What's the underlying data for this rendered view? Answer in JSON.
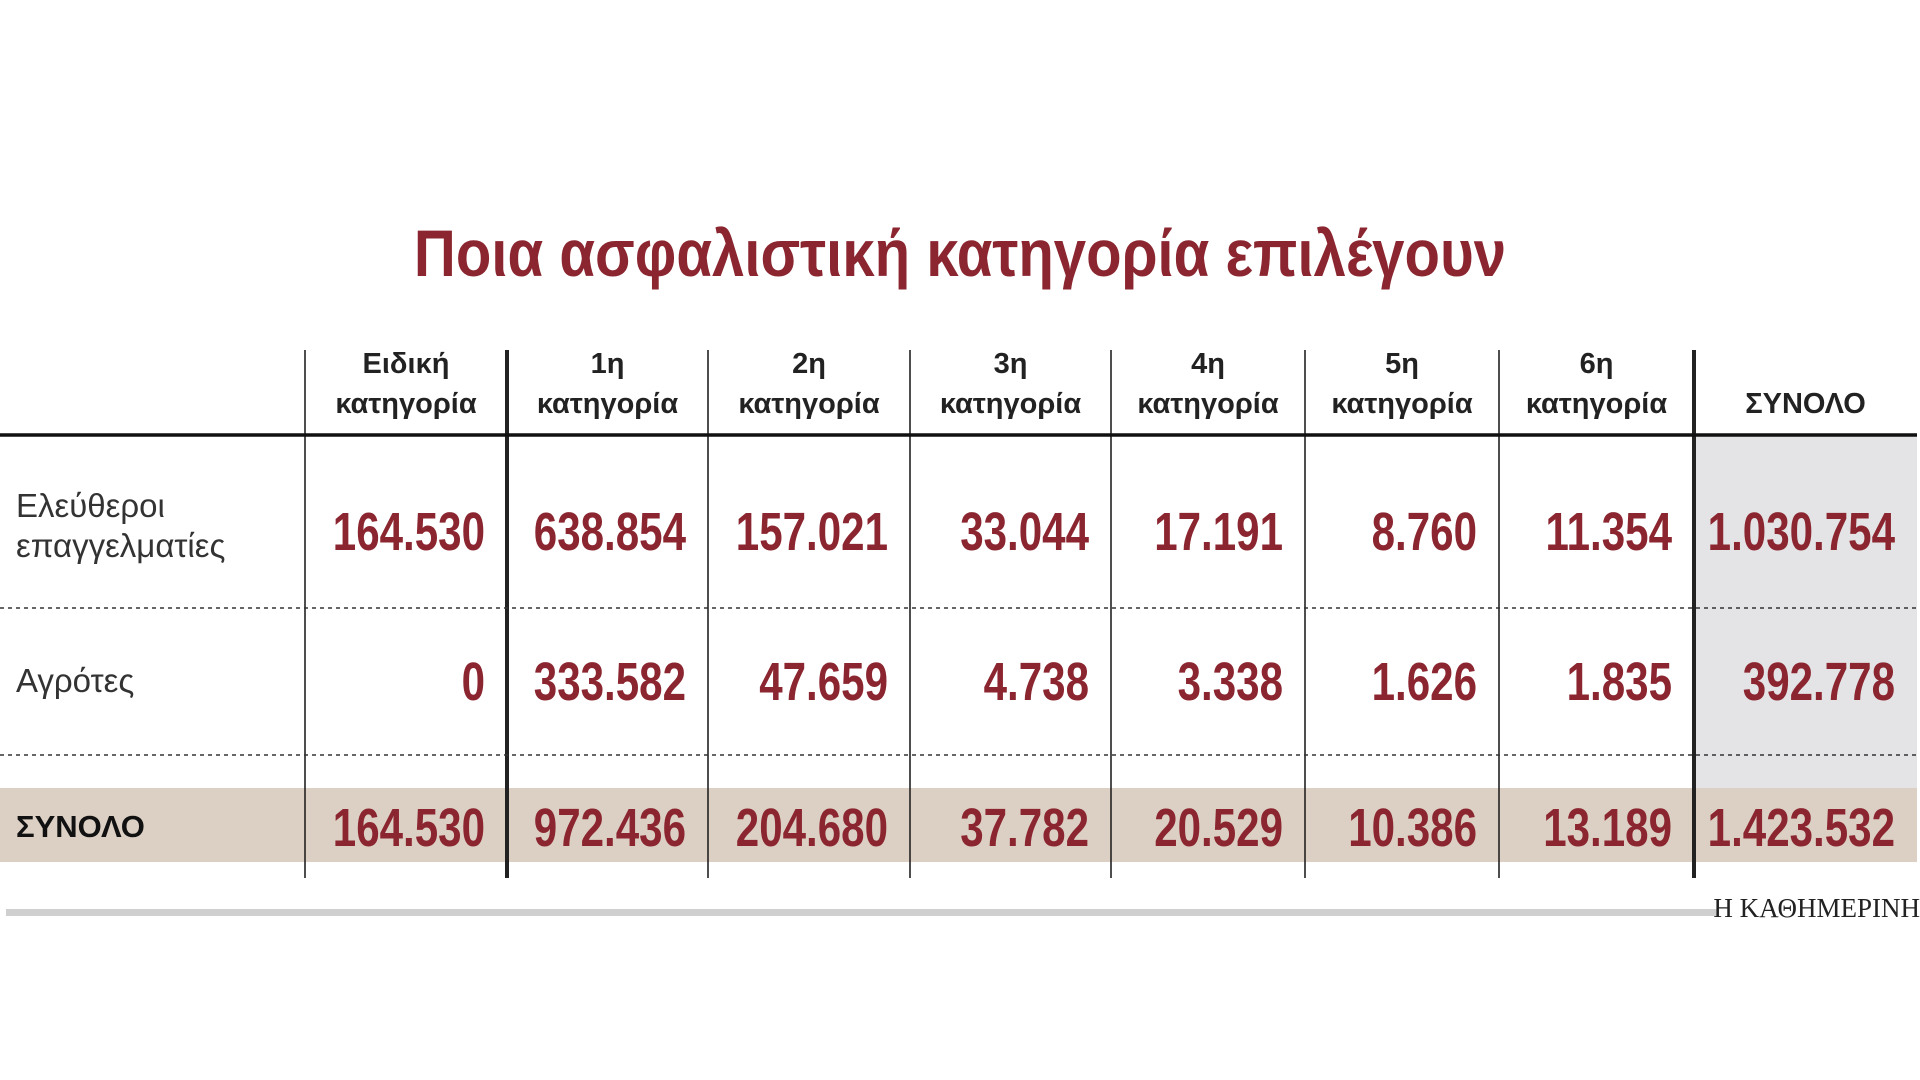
{
  "chart_data": {
    "type": "table",
    "title": "Ποια ασφαλιστική κατηγορία επιλέγουν",
    "columns": [
      [
        "Ειδική",
        "κατηγορία"
      ],
      [
        "1η",
        "κατηγορία"
      ],
      [
        "2η",
        "κατηγορία"
      ],
      [
        "3η",
        "κατηγορία"
      ],
      [
        "4η",
        "κατηγορία"
      ],
      [
        "5η",
        "κατηγορία"
      ],
      [
        "6η",
        "κατηγορία"
      ],
      [
        "",
        "ΣΥΝΟΛΟ"
      ]
    ],
    "rows": [
      {
        "label": [
          "Ελεύθεροι",
          "επαγγελματίες"
        ],
        "values": [
          "164.530",
          "638.854",
          "157.021",
          "33.044",
          "17.191",
          "8.760",
          "11.354",
          "1.030.754"
        ]
      },
      {
        "label": [
          "Αγρότες"
        ],
        "values": [
          "0",
          "333.582",
          "47.659",
          "4.738",
          "3.338",
          "1.626",
          "1.835",
          "392.778"
        ]
      },
      {
        "label": [
          "ΣΥΝΟΛΟ"
        ],
        "values": [
          "164.530",
          "972.436",
          "204.680",
          "37.782",
          "20.529",
          "10.386",
          "13.189",
          "1.423.532"
        ],
        "total": true
      }
    ],
    "colors": {
      "numbers": "#8b2630",
      "total_row_bg": "#dcd0c4",
      "total_col_bg": "#e4e4e6",
      "bottom_rule": "#cfcfcf"
    }
  },
  "source": "Η ΚΑΘΗΜΕΡΙΝΗ"
}
